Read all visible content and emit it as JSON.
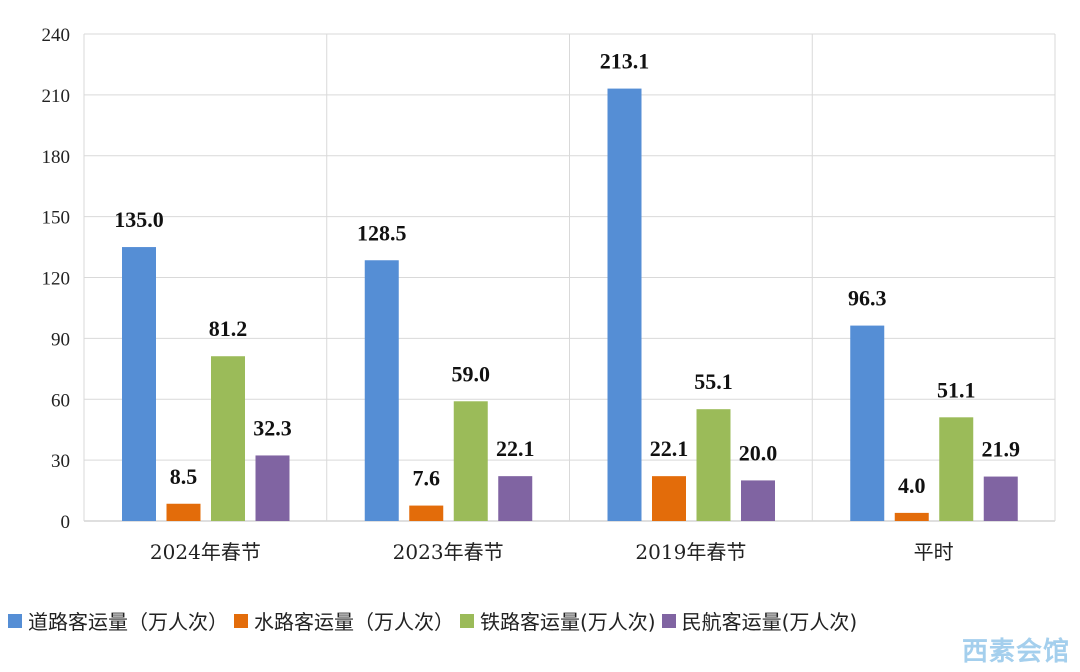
{
  "chart_data": {
    "type": "bar",
    "categories": [
      "2024年春节",
      "2023年春节",
      "2019年春节",
      "平时"
    ],
    "series": [
      {
        "name": "道路客运量（万人次）",
        "color": "#558ed5",
        "values": [
          135.0,
          128.5,
          213.1,
          96.3
        ],
        "labels": [
          "135.0",
          "128.5",
          "213.1",
          "96.3"
        ]
      },
      {
        "name": "水路客运量（万人次）",
        "color": "#e36c0a",
        "values": [
          8.5,
          7.6,
          22.1,
          4.0
        ],
        "labels": [
          "8.5",
          "7.6",
          "22.1",
          "4.0"
        ]
      },
      {
        "name": "铁路客运量(万人次)",
        "color": "#9bbb59",
        "values": [
          81.2,
          59.0,
          55.1,
          51.1
        ],
        "labels": [
          "81.2",
          "59.0",
          "55.1",
          "51.1"
        ]
      },
      {
        "name": "民航客运量(万人次)",
        "color": "#8064a2",
        "values": [
          32.3,
          22.1,
          20.0,
          21.9
        ],
        "labels": [
          "32.3",
          "22.1",
          "20.0",
          "21.9"
        ]
      }
    ],
    "ylim": [
      0,
      240
    ],
    "yticks": [
      "0",
      "30",
      "60",
      "90",
      "120",
      "150",
      "180",
      "210",
      "240"
    ],
    "grid": true,
    "legend_position": "bottom"
  },
  "watermark": "西素会馆"
}
